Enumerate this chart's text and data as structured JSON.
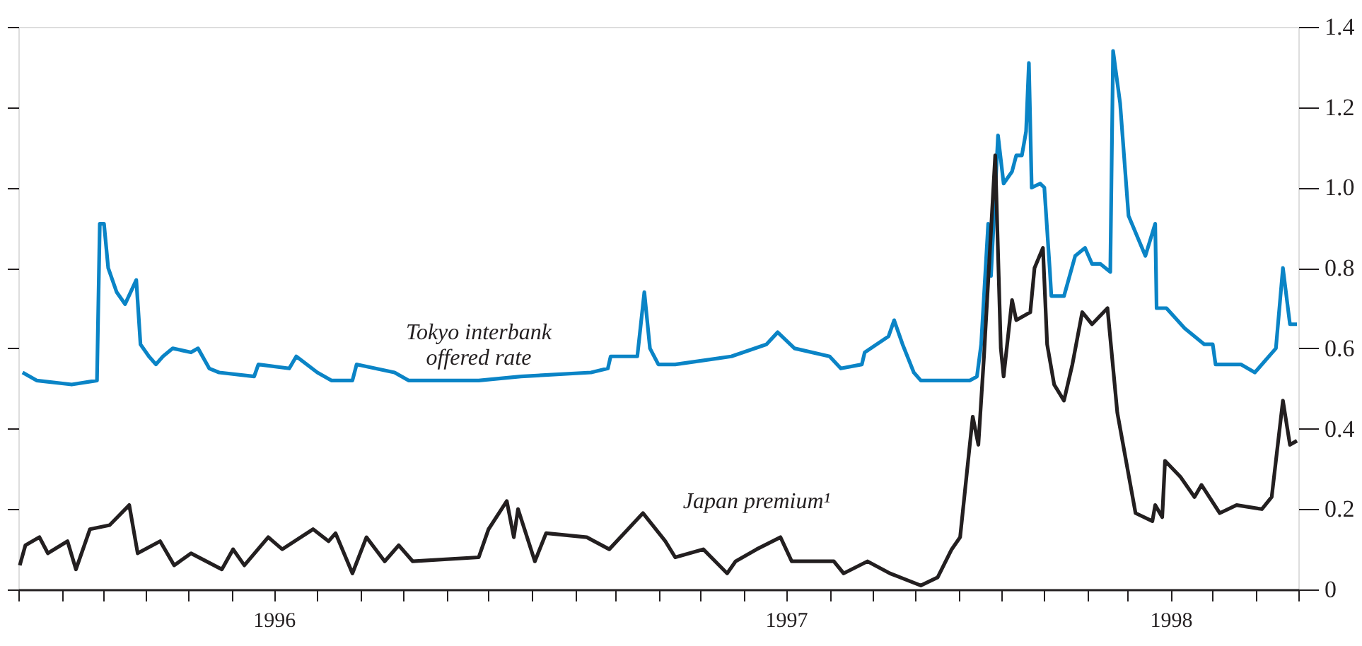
{
  "chart_data": {
    "type": "line",
    "xlim": [
      "1996-01-01",
      "1998-07-01"
    ],
    "ylim": [
      0,
      1.4
    ],
    "xticks": [
      {
        "value": "1996-01",
        "label": null
      },
      {
        "value": "1996-02",
        "label": null
      },
      {
        "value": "1996-03",
        "label": null
      },
      {
        "value": "1996-04",
        "label": null
      },
      {
        "value": "1996-05",
        "label": null
      },
      {
        "value": "1996-06",
        "label": null
      },
      {
        "value": "1996-07",
        "label": "1996"
      },
      {
        "value": "1996-08",
        "label": null
      },
      {
        "value": "1996-09",
        "label": null
      },
      {
        "value": "1996-10",
        "label": null
      },
      {
        "value": "1996-11",
        "label": null
      },
      {
        "value": "1996-12",
        "label": null
      },
      {
        "value": "1997-01",
        "label": null
      },
      {
        "value": "1997-02",
        "label": null
      },
      {
        "value": "1997-03",
        "label": null
      },
      {
        "value": "1997-04",
        "label": null
      },
      {
        "value": "1997-05",
        "label": null
      },
      {
        "value": "1997-06",
        "label": null
      },
      {
        "value": "1997-07",
        "label": "1997"
      },
      {
        "value": "1997-08",
        "label": null
      },
      {
        "value": "1997-09",
        "label": null
      },
      {
        "value": "1997-10",
        "label": null
      },
      {
        "value": "1997-11",
        "label": null
      },
      {
        "value": "1997-12",
        "label": null
      },
      {
        "value": "1998-01",
        "label": null
      },
      {
        "value": "1998-02",
        "label": null
      },
      {
        "value": "1998-03",
        "label": null
      },
      {
        "value": "1998-04",
        "label": "1998"
      },
      {
        "value": "1998-05",
        "label": null
      },
      {
        "value": "1998-06",
        "label": null
      },
      {
        "value": "1998-07",
        "label": null
      }
    ],
    "yticks": [
      0,
      0.2,
      0.4,
      0.6,
      0.8,
      {
        "value": 1.0,
        "label": "1.0"
      },
      1.2,
      1.4
    ],
    "grid": false,
    "marker": "none",
    "line_style": "solid",
    "annotations": [
      {
        "text": "Tokyo interbank\noffered rate",
        "x": "1996-11-24",
        "y": 0.52
      },
      {
        "text": "Japan premium¹",
        "x": "1997-06-10",
        "y": 0.1
      }
    ],
    "series": [
      {
        "color": "#0a84c6",
        "x": [
          "1996-01-04",
          "1996-01-14",
          "1996-02-08",
          "1996-02-26",
          "1996-02-28",
          "1996-03-02",
          "1996-03-05",
          "1996-03-11",
          "1996-03-17",
          "1996-03-25",
          "1996-03-28",
          "1996-04-03",
          "1996-04-08",
          "1996-04-13",
          "1996-04-20",
          "1996-05-03",
          "1996-05-08",
          "1996-05-16",
          "1996-05-23",
          "1996-06-17",
          "1996-06-20",
          "1996-07-12",
          "1996-07-17",
          "1996-08-01",
          "1996-08-11",
          "1996-08-26",
          "1996-08-29",
          "1996-09-25",
          "1996-10-05",
          "1996-11-24",
          "1996-12-24",
          "1997-02-12",
          "1997-02-24",
          "1997-02-26",
          "1997-03-17",
          "1997-03-22",
          "1997-03-26",
          "1997-04-01",
          "1997-04-13",
          "1997-05-23",
          "1997-06-17",
          "1997-06-25",
          "1997-07-07",
          "1997-08-01",
          "1997-08-09",
          "1997-08-24",
          "1997-08-26",
          "1997-09-12",
          "1997-09-16",
          "1997-09-22",
          "1997-09-30",
          "1997-10-05",
          "1997-11-09",
          "1997-11-14",
          "1997-11-17",
          "1997-11-22",
          "1997-11-24",
          "1997-11-29",
          "1997-12-03",
          "1997-12-09",
          "1997-12-12",
          "1997-12-16",
          "1997-12-19",
          "1997-12-21",
          "1997-12-23",
          "1997-12-29",
          "1998-01-01",
          "1998-01-05",
          "1998-01-06",
          "1998-01-15",
          "1998-01-23",
          "1998-01-30",
          "1998-02-04",
          "1998-02-10",
          "1998-02-17",
          "1998-02-19",
          "1998-02-24",
          "1998-03-02",
          "1998-03-14",
          "1998-03-21",
          "1998-03-22",
          "1998-03-29",
          "1998-04-11",
          "1998-04-25",
          "1998-05-01",
          "1998-05-03",
          "1998-05-21",
          "1998-05-31",
          "1998-06-15",
          "1998-06-20",
          "1998-06-25",
          "1998-06-30"
        ],
        "values": [
          0.54,
          0.52,
          0.51,
          0.52,
          0.91,
          0.91,
          0.8,
          0.74,
          0.71,
          0.77,
          0.61,
          0.58,
          0.56,
          0.58,
          0.6,
          0.59,
          0.6,
          0.55,
          0.54,
          0.53,
          0.56,
          0.55,
          0.58,
          0.54,
          0.52,
          0.52,
          0.56,
          0.54,
          0.52,
          0.52,
          0.53,
          0.54,
          0.55,
          0.58,
          0.58,
          0.74,
          0.6,
          0.56,
          0.56,
          0.58,
          0.61,
          0.64,
          0.6,
          0.58,
          0.55,
          0.56,
          0.59,
          0.63,
          0.67,
          0.61,
          0.54,
          0.52,
          0.52,
          0.53,
          0.61,
          0.91,
          0.78,
          1.13,
          1.01,
          1.04,
          1.08,
          1.08,
          1.14,
          1.31,
          1.0,
          1.01,
          1.0,
          0.79,
          0.73,
          0.73,
          0.83,
          0.85,
          0.81,
          0.81,
          0.79,
          1.34,
          1.21,
          0.93,
          0.83,
          0.91,
          0.7,
          0.7,
          0.65,
          0.61,
          0.61,
          0.56,
          0.56,
          0.54,
          0.6,
          0.8,
          0.66,
          0.66
        ]
      },
      {
        "color": "#231f20",
        "x": [
          "1996-01-02",
          "1996-01-06",
          "1996-01-16",
          "1996-01-22",
          "1996-02-05",
          "1996-02-11",
          "1996-02-21",
          "1996-03-06",
          "1996-03-20",
          "1996-03-26",
          "1996-04-11",
          "1996-04-21",
          "1996-05-03",
          "1996-05-25",
          "1996-06-02",
          "1996-06-10",
          "1996-06-27",
          "1996-07-07",
          "1996-07-29",
          "1996-08-09",
          "1996-08-14",
          "1996-08-26",
          "1996-09-05",
          "1996-09-18",
          "1996-09-28",
          "1996-10-08",
          "1996-11-24",
          "1996-12-01",
          "1996-12-14",
          "1996-12-19",
          "1996-12-22",
          "1997-01-03",
          "1997-01-11",
          "1997-02-09",
          "1997-02-25",
          "1997-03-21",
          "1997-04-06",
          "1997-04-13",
          "1997-05-03",
          "1997-05-20",
          "1997-05-26",
          "1997-06-10",
          "1997-06-27",
          "1997-07-05",
          "1997-08-04",
          "1997-08-11",
          "1997-08-28",
          "1997-09-13",
          "1997-10-05",
          "1997-10-17",
          "1997-10-27",
          "1997-11-02",
          "1997-11-11",
          "1997-11-15",
          "1997-11-19",
          "1997-11-27",
          "1997-12-01",
          "1997-12-03",
          "1997-12-09",
          "1997-12-12",
          "1997-12-22",
          "1997-12-25",
          "1997-12-31",
          "1998-01-03",
          "1998-01-08",
          "1998-01-15",
          "1998-01-21",
          "1998-01-28",
          "1998-02-04",
          "1998-02-15",
          "1998-02-22",
          "1998-03-07",
          "1998-03-19",
          "1998-03-21",
          "1998-03-26",
          "1998-03-28",
          "1998-04-08",
          "1998-04-18",
          "1998-04-23",
          "1998-05-06",
          "1998-05-18",
          "1998-06-05",
          "1998-06-12",
          "1998-06-20",
          "1998-06-25",
          "1998-06-30"
        ],
        "values": [
          0.06,
          0.11,
          0.13,
          0.09,
          0.12,
          0.05,
          0.15,
          0.16,
          0.21,
          0.09,
          0.12,
          0.06,
          0.09,
          0.05,
          0.1,
          0.06,
          0.13,
          0.1,
          0.15,
          0.12,
          0.14,
          0.04,
          0.13,
          0.07,
          0.11,
          0.07,
          0.08,
          0.15,
          0.22,
          0.13,
          0.2,
          0.07,
          0.14,
          0.13,
          0.1,
          0.19,
          0.12,
          0.08,
          0.1,
          0.04,
          0.07,
          0.1,
          0.13,
          0.07,
          0.07,
          0.04,
          0.07,
          0.04,
          0.01,
          0.03,
          0.1,
          0.13,
          0.43,
          0.36,
          0.58,
          1.08,
          0.6,
          0.53,
          0.72,
          0.67,
          0.69,
          0.8,
          0.85,
          0.61,
          0.51,
          0.47,
          0.56,
          0.69,
          0.66,
          0.7,
          0.44,
          0.19,
          0.17,
          0.21,
          0.18,
          0.32,
          0.28,
          0.23,
          0.26,
          0.19,
          0.21,
          0.2,
          0.23,
          0.47,
          0.36,
          0.37
        ]
      }
    ]
  }
}
